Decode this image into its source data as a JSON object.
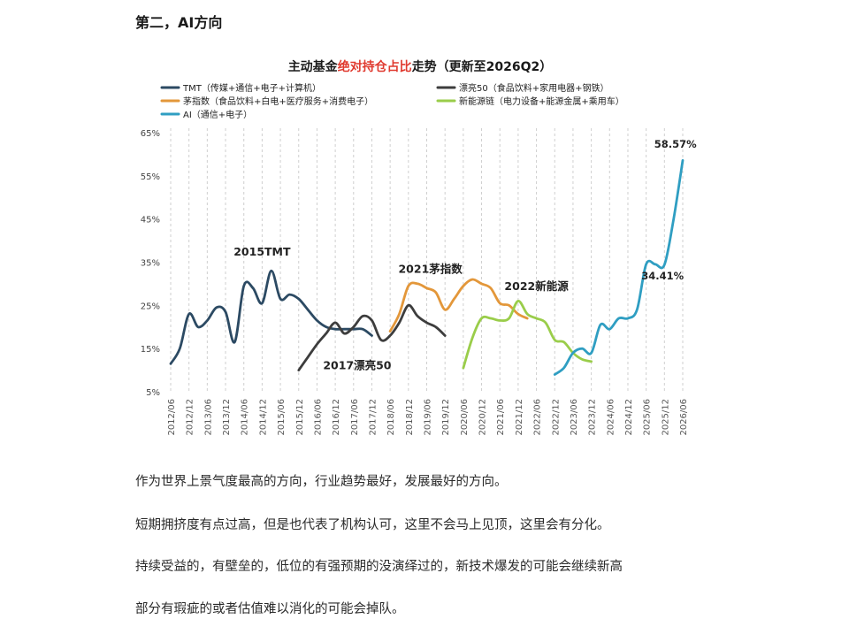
{
  "article": {
    "heading": "第二，AI方向",
    "paragraphs": [
      "作为世界上景气度最高的方向，行业趋势最好，发展最好的方向。",
      "短期拥挤度有点过高，但是也代表了机构认可，这里不会马上见顶，这里会有分化。",
      "持续受益的，有壁垒的，低位的有强预期的没演绎过的，新技术爆发的可能会继续新高",
      "部分有瑕疵的或者估值难以消化的可能会掉队。"
    ]
  },
  "chart_data": {
    "type": "line",
    "title": {
      "prefix": "主动基金",
      "highlight": "绝对持仓占比",
      "suffix": "走势（更新至2026Q2）"
    },
    "highlight_color": "#e03a2f",
    "ylim": [
      5,
      65
    ],
    "yticks": [
      "65%",
      "55%",
      "45%",
      "35%",
      "25%",
      "15%",
      "5%"
    ],
    "xlabels": [
      "2012/06",
      "2012/12",
      "2013/06",
      "2013/12",
      "2014/06",
      "2014/12",
      "2015/06",
      "2015/12",
      "2016/06",
      "2016/12",
      "2017/06",
      "2017/12",
      "2018/06",
      "2018/12",
      "2019/06",
      "2019/12",
      "2020/06",
      "2020/12",
      "2021/06",
      "2021/12",
      "2022/06",
      "2022/12",
      "2023/06",
      "2023/12",
      "2024/06",
      "2024/12",
      "2025/06",
      "2025/12",
      "2026/06"
    ],
    "grid": "vertical dashed",
    "legend_position": "top-left",
    "series": [
      {
        "name": "TMT（传媒+通信+电子+计算机）",
        "color": "#2c4a63",
        "x": [
          2012.5,
          2012.75,
          2013.0,
          2013.25,
          2013.5,
          2013.75,
          2014.0,
          2014.25,
          2014.5,
          2014.75,
          2015.0,
          2015.25,
          2015.5,
          2015.75,
          2016.0,
          2016.25,
          2016.5,
          2016.75,
          2017.0,
          2017.25,
          2017.5,
          2017.75,
          2018.0
        ],
        "y": [
          11.5,
          15,
          23,
          20,
          21.5,
          24.5,
          23.5,
          16.5,
          29.5,
          29,
          25.5,
          33,
          26.5,
          27.5,
          26.5,
          24,
          21.5,
          20,
          19.5,
          19.5,
          19.5,
          19.5,
          18
        ]
      },
      {
        "name": "漂亮50（食品饮料+家用电器+钢铁）",
        "color": "#3d3d3d",
        "x": [
          2016.0,
          2016.25,
          2016.5,
          2016.75,
          2017.0,
          2017.25,
          2017.5,
          2017.75,
          2018.0,
          2018.25,
          2018.5,
          2018.75,
          2019.0,
          2019.25,
          2019.5,
          2019.75,
          2020.0
        ],
        "y": [
          10,
          13,
          16,
          18.5,
          21,
          18.5,
          20,
          22.5,
          21.5,
          17,
          18,
          21,
          25,
          22.5,
          21,
          20,
          18
        ]
      },
      {
        "name": "茅指数（食品饮料+白电+医疗服务+消费电子）",
        "color": "#e3973a",
        "x": [
          2018.5,
          2018.75,
          2019.0,
          2019.25,
          2019.5,
          2019.75,
          2020.0,
          2020.25,
          2020.5,
          2020.75,
          2021.0,
          2021.25,
          2021.5,
          2021.75,
          2022.0,
          2022.25
        ],
        "y": [
          19,
          23,
          29.5,
          30,
          29,
          28,
          24,
          26.5,
          29.5,
          31,
          30,
          29,
          25.5,
          25,
          23,
          22
        ]
      },
      {
        "name": "新能源链（电力设备+能源金属+乘用车）",
        "color": "#9acd4a",
        "x": [
          2020.5,
          2020.75,
          2021.0,
          2021.25,
          2021.5,
          2021.75,
          2022.0,
          2022.25,
          2022.5,
          2022.75,
          2023.0,
          2023.25,
          2023.5,
          2023.75,
          2024.0
        ],
        "y": [
          10.5,
          17.5,
          22,
          22,
          21.5,
          22,
          26,
          23,
          22,
          21,
          17,
          16.5,
          14,
          12.5,
          12
        ]
      },
      {
        "name": "AI（通信+电子）",
        "color": "#2f9ec2",
        "x": [
          2023.0,
          2023.25,
          2023.5,
          2023.75,
          2024.0,
          2024.25,
          2024.5,
          2024.75,
          2025.0,
          2025.25,
          2025.5,
          2025.75,
          2026.0,
          2026.25,
          2026.5
        ],
        "y": [
          9,
          10.5,
          14,
          15,
          14,
          20.5,
          19.5,
          22,
          22,
          24,
          34.5,
          34.5,
          34.41,
          45,
          58.57
        ]
      }
    ],
    "annotations": [
      {
        "text": "2015TMT",
        "x": 2015.0,
        "y": 36.5
      },
      {
        "text": "2017漂亮50",
        "x": 2017.6,
        "y": 10.2
      },
      {
        "text": "2021茅指数",
        "x": 2019.6,
        "y": 32.5
      },
      {
        "text": "2022新能源",
        "x": 2022.5,
        "y": 28.5
      },
      {
        "text": "58.57%",
        "x": 2026.3,
        "y": 61.5
      },
      {
        "text": "34.41%",
        "x": 2025.95,
        "y": 31.0
      }
    ]
  }
}
